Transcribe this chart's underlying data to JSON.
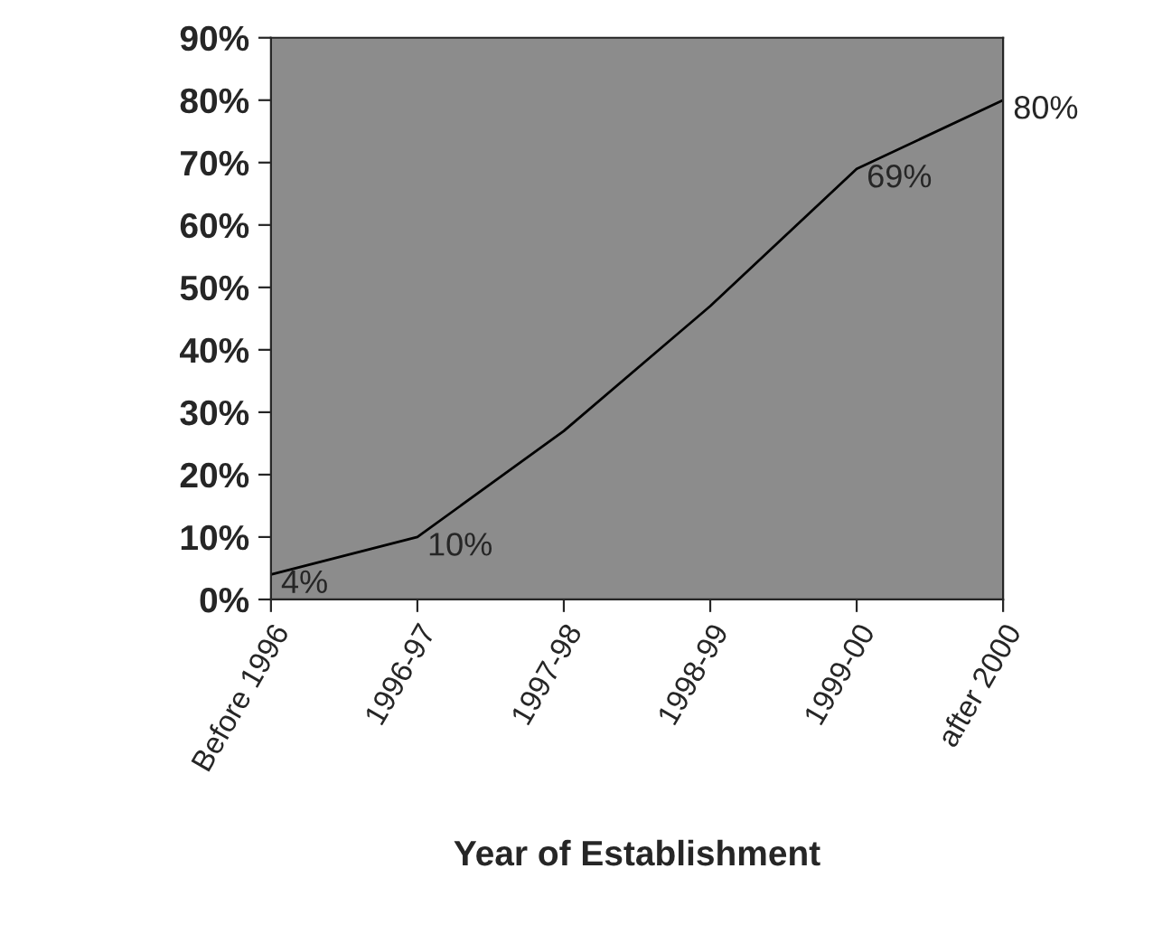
{
  "chart_data": {
    "type": "line",
    "xlabel": "Year of Establishment",
    "categories": [
      "Before 1996",
      "1996-97",
      "1997-98",
      "1998-99",
      "1999-00",
      "after 2000"
    ],
    "series": [
      {
        "color": "#000000",
        "values": [
          4,
          10,
          27,
          47,
          69,
          80
        ],
        "value_labels": [
          "4%",
          "10%",
          null,
          null,
          "69%",
          "80%"
        ]
      }
    ],
    "ylim": [
      0,
      90
    ],
    "yticks": [
      {
        "value": 0,
        "label": "0%"
      },
      {
        "value": 10,
        "label": "10%"
      },
      {
        "value": 20,
        "label": "20%"
      },
      {
        "value": 30,
        "label": "30%"
      },
      {
        "value": 40,
        "label": "40%"
      },
      {
        "value": 50,
        "label": "50%"
      },
      {
        "value": 60,
        "label": "60%"
      },
      {
        "value": 70,
        "label": "70%"
      },
      {
        "value": 80,
        "label": "80%"
      },
      {
        "value": 90,
        "label": "90%"
      }
    ],
    "grid": false,
    "marker": "none",
    "line_style": "solid"
  }
}
